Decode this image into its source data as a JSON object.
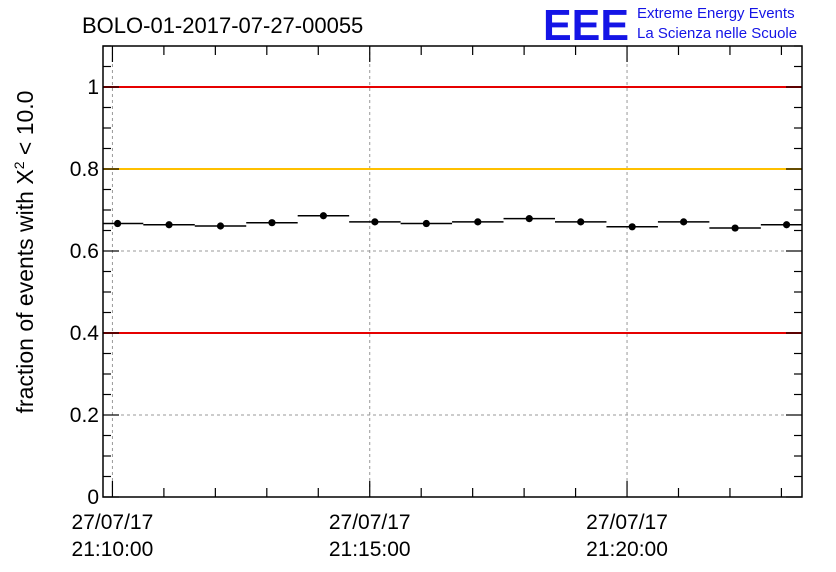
{
  "chart_data": {
    "type": "scatter",
    "title": "BOLO-01-2017-07-27-00055",
    "ylabel_main": "fraction of events with ",
    "ylabel_chi": "X",
    "ylabel_sup": "2",
    "ylabel_tail": " < 10.0",
    "ylim": [
      0,
      1.1
    ],
    "y_ticks": [
      {
        "value": 0,
        "label": "0"
      },
      {
        "value": 0.2,
        "label": "0.2"
      },
      {
        "value": 0.4,
        "label": "0.4"
      },
      {
        "value": 0.6,
        "label": "0.6"
      },
      {
        "value": 0.8,
        "label": "0.8"
      },
      {
        "value": 1,
        "label": "1"
      }
    ],
    "xlim": [
      "21:09:49",
      "21:23:24"
    ],
    "x_ticks": [
      {
        "value": "21:10:00",
        "date_label": "27/07/17",
        "time_label": "21:10:00"
      },
      {
        "value": "21:15:00",
        "date_label": "27/07/17",
        "time_label": "21:15:00"
      },
      {
        "value": "21:20:00",
        "date_label": "27/07/17",
        "time_label": "21:20:00"
      }
    ],
    "grid": true,
    "reference_lines": [
      {
        "y": 1.0,
        "color": "#e60000"
      },
      {
        "y": 0.8,
        "color": "#ffc000"
      },
      {
        "y": 0.4,
        "color": "#e60000"
      }
    ],
    "series": [
      {
        "color": "#000000",
        "x": [
          "21:10:06",
          "21:11:06",
          "21:12:06",
          "21:13:06",
          "21:14:06",
          "21:15:06",
          "21:16:06",
          "21:17:06",
          "21:18:06",
          "21:19:06",
          "21:20:06",
          "21:21:06",
          "21:22:06",
          "21:23:06"
        ],
        "bin_width_seconds": 60,
        "y": [
          0.667,
          0.664,
          0.661,
          0.669,
          0.686,
          0.671,
          0.667,
          0.671,
          0.679,
          0.671,
          0.659,
          0.671,
          0.656,
          0.664
        ]
      }
    ]
  },
  "logo": {
    "mark": "EEE",
    "line1": "Extreme Energy Events",
    "line2": "La Scienza nelle Scuole"
  },
  "colors": {
    "logo": "#1414e6",
    "grid": "#999999",
    "axis": "#000000"
  }
}
